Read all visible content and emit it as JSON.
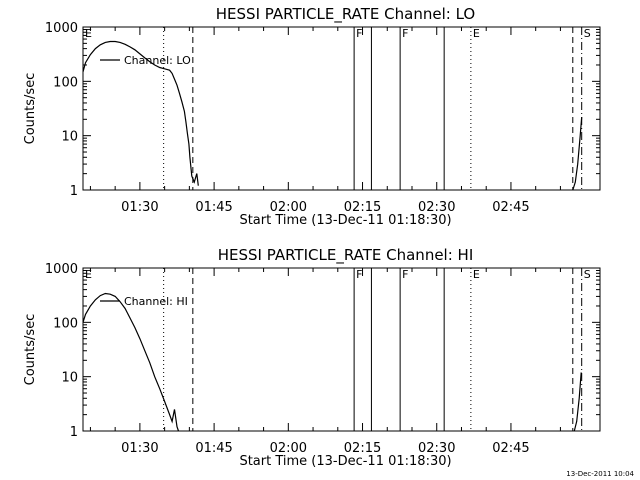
{
  "chart_data": [
    {
      "type": "line",
      "title": "HESSI PARTICLE_RATE Channel: LO",
      "xlabel": "Start Time (13-Dec-11 01:18:30)",
      "ylabel": "Counts/sec",
      "yscale": "log",
      "ylim": [
        1,
        1000
      ],
      "xlim_minutes_after_0100": [
        18.5,
        123
      ],
      "x_tick_labels": [
        "01:30",
        "01:45",
        "02:00",
        "02:15",
        "02:30",
        "02:45"
      ],
      "x_tick_minutes_after_0100": [
        30,
        45,
        60,
        75,
        90,
        105
      ],
      "y_tick_labels": [
        "1",
        "10",
        "100",
        "1000"
      ],
      "y_tick_values": [
        1,
        10,
        100,
        1000
      ],
      "legend": {
        "label": "Channel: LO",
        "placement": "top-left"
      },
      "series": [
        {
          "name": "Channel: LO",
          "x_minutes_after_0100": [
            18.5,
            19,
            20,
            21,
            22,
            23,
            24,
            25,
            26,
            27,
            28,
            29,
            30,
            31,
            32,
            33,
            34,
            35,
            36,
            36.5,
            37,
            37.5,
            38,
            38.5,
            39,
            39.3,
            39.6,
            39.9,
            40.1,
            40.5,
            41,
            41.5,
            41.8
          ],
          "y": [
            150,
            220,
            310,
            400,
            470,
            520,
            540,
            540,
            520,
            480,
            430,
            380,
            320,
            270,
            230,
            200,
            180,
            170,
            160,
            140,
            110,
            85,
            60,
            42,
            28,
            18,
            11,
            7,
            4,
            1.8,
            1.4,
            2,
            1.2
          ]
        },
        {
          "name": "",
          "x_minutes_after_0100": [
            117.5,
            118,
            118.5,
            119,
            119.3
          ],
          "y": [
            1,
            1.4,
            3,
            10,
            22
          ]
        }
      ],
      "markers": [
        {
          "label": "E",
          "style": "dotted",
          "minute": 18.5
        },
        {
          "label": "",
          "style": "dotted",
          "minute": 34.8
        },
        {
          "label": "",
          "style": "dashed",
          "minute": 40.7
        },
        {
          "label": "F",
          "style": "solid",
          "minute": 73.3
        },
        {
          "label": "",
          "style": "solid",
          "minute": 76.8
        },
        {
          "label": "F",
          "style": "solid",
          "minute": 82.6
        },
        {
          "label": "",
          "style": "solid",
          "minute": 91.5
        },
        {
          "label": "E",
          "style": "dotted",
          "minute": 96.9
        },
        {
          "label": "",
          "style": "dashed",
          "minute": 117.5
        },
        {
          "label": "S",
          "style": "dashdot",
          "minute": 119.3
        }
      ]
    },
    {
      "type": "line",
      "title": "HESSI PARTICLE_RATE Channel: HI",
      "xlabel": "Start Time (13-Dec-11 01:18:30)",
      "ylabel": "Counts/sec",
      "yscale": "log",
      "ylim": [
        1,
        1000
      ],
      "xlim_minutes_after_0100": [
        18.5,
        123
      ],
      "x_tick_labels": [
        "01:30",
        "01:45",
        "02:00",
        "02:15",
        "02:30",
        "02:45"
      ],
      "x_tick_minutes_after_0100": [
        30,
        45,
        60,
        75,
        90,
        105
      ],
      "y_tick_labels": [
        "1",
        "10",
        "100",
        "1000"
      ],
      "y_tick_values": [
        1,
        10,
        100,
        1000
      ],
      "legend": {
        "label": "Channel: HI",
        "placement": "top-left"
      },
      "series": [
        {
          "name": "Channel: HI",
          "x_minutes_after_0100": [
            18.5,
            19,
            20,
            21,
            22,
            23,
            24,
            25,
            26,
            27,
            28,
            29,
            30,
            31,
            32,
            33,
            34,
            35,
            36,
            36.5,
            37,
            37.5,
            37.8
          ],
          "y": [
            100,
            140,
            200,
            260,
            310,
            340,
            330,
            300,
            240,
            180,
            120,
            80,
            50,
            30,
            18,
            10,
            6,
            3.5,
            2,
            1.5,
            2.5,
            1.2,
            1
          ]
        },
        {
          "name": "",
          "x_minutes_after_0100": [
            117.8,
            118.3,
            118.8,
            119.2
          ],
          "y": [
            1,
            1.5,
            4,
            12
          ]
        }
      ],
      "markers": [
        {
          "label": "E",
          "style": "dotted",
          "minute": 18.5
        },
        {
          "label": "",
          "style": "dotted",
          "minute": 34.8
        },
        {
          "label": "",
          "style": "dashed",
          "minute": 40.7
        },
        {
          "label": "F",
          "style": "solid",
          "minute": 73.3
        },
        {
          "label": "",
          "style": "solid",
          "minute": 76.8
        },
        {
          "label": "F",
          "style": "solid",
          "minute": 82.6
        },
        {
          "label": "",
          "style": "solid",
          "minute": 91.5
        },
        {
          "label": "E",
          "style": "dotted",
          "minute": 96.9
        },
        {
          "label": "",
          "style": "dashed",
          "minute": 117.5
        },
        {
          "label": "S",
          "style": "dashdot",
          "minute": 119.3
        }
      ]
    }
  ],
  "footer": {
    "stamp": "13-Dec-2011 10:04"
  }
}
